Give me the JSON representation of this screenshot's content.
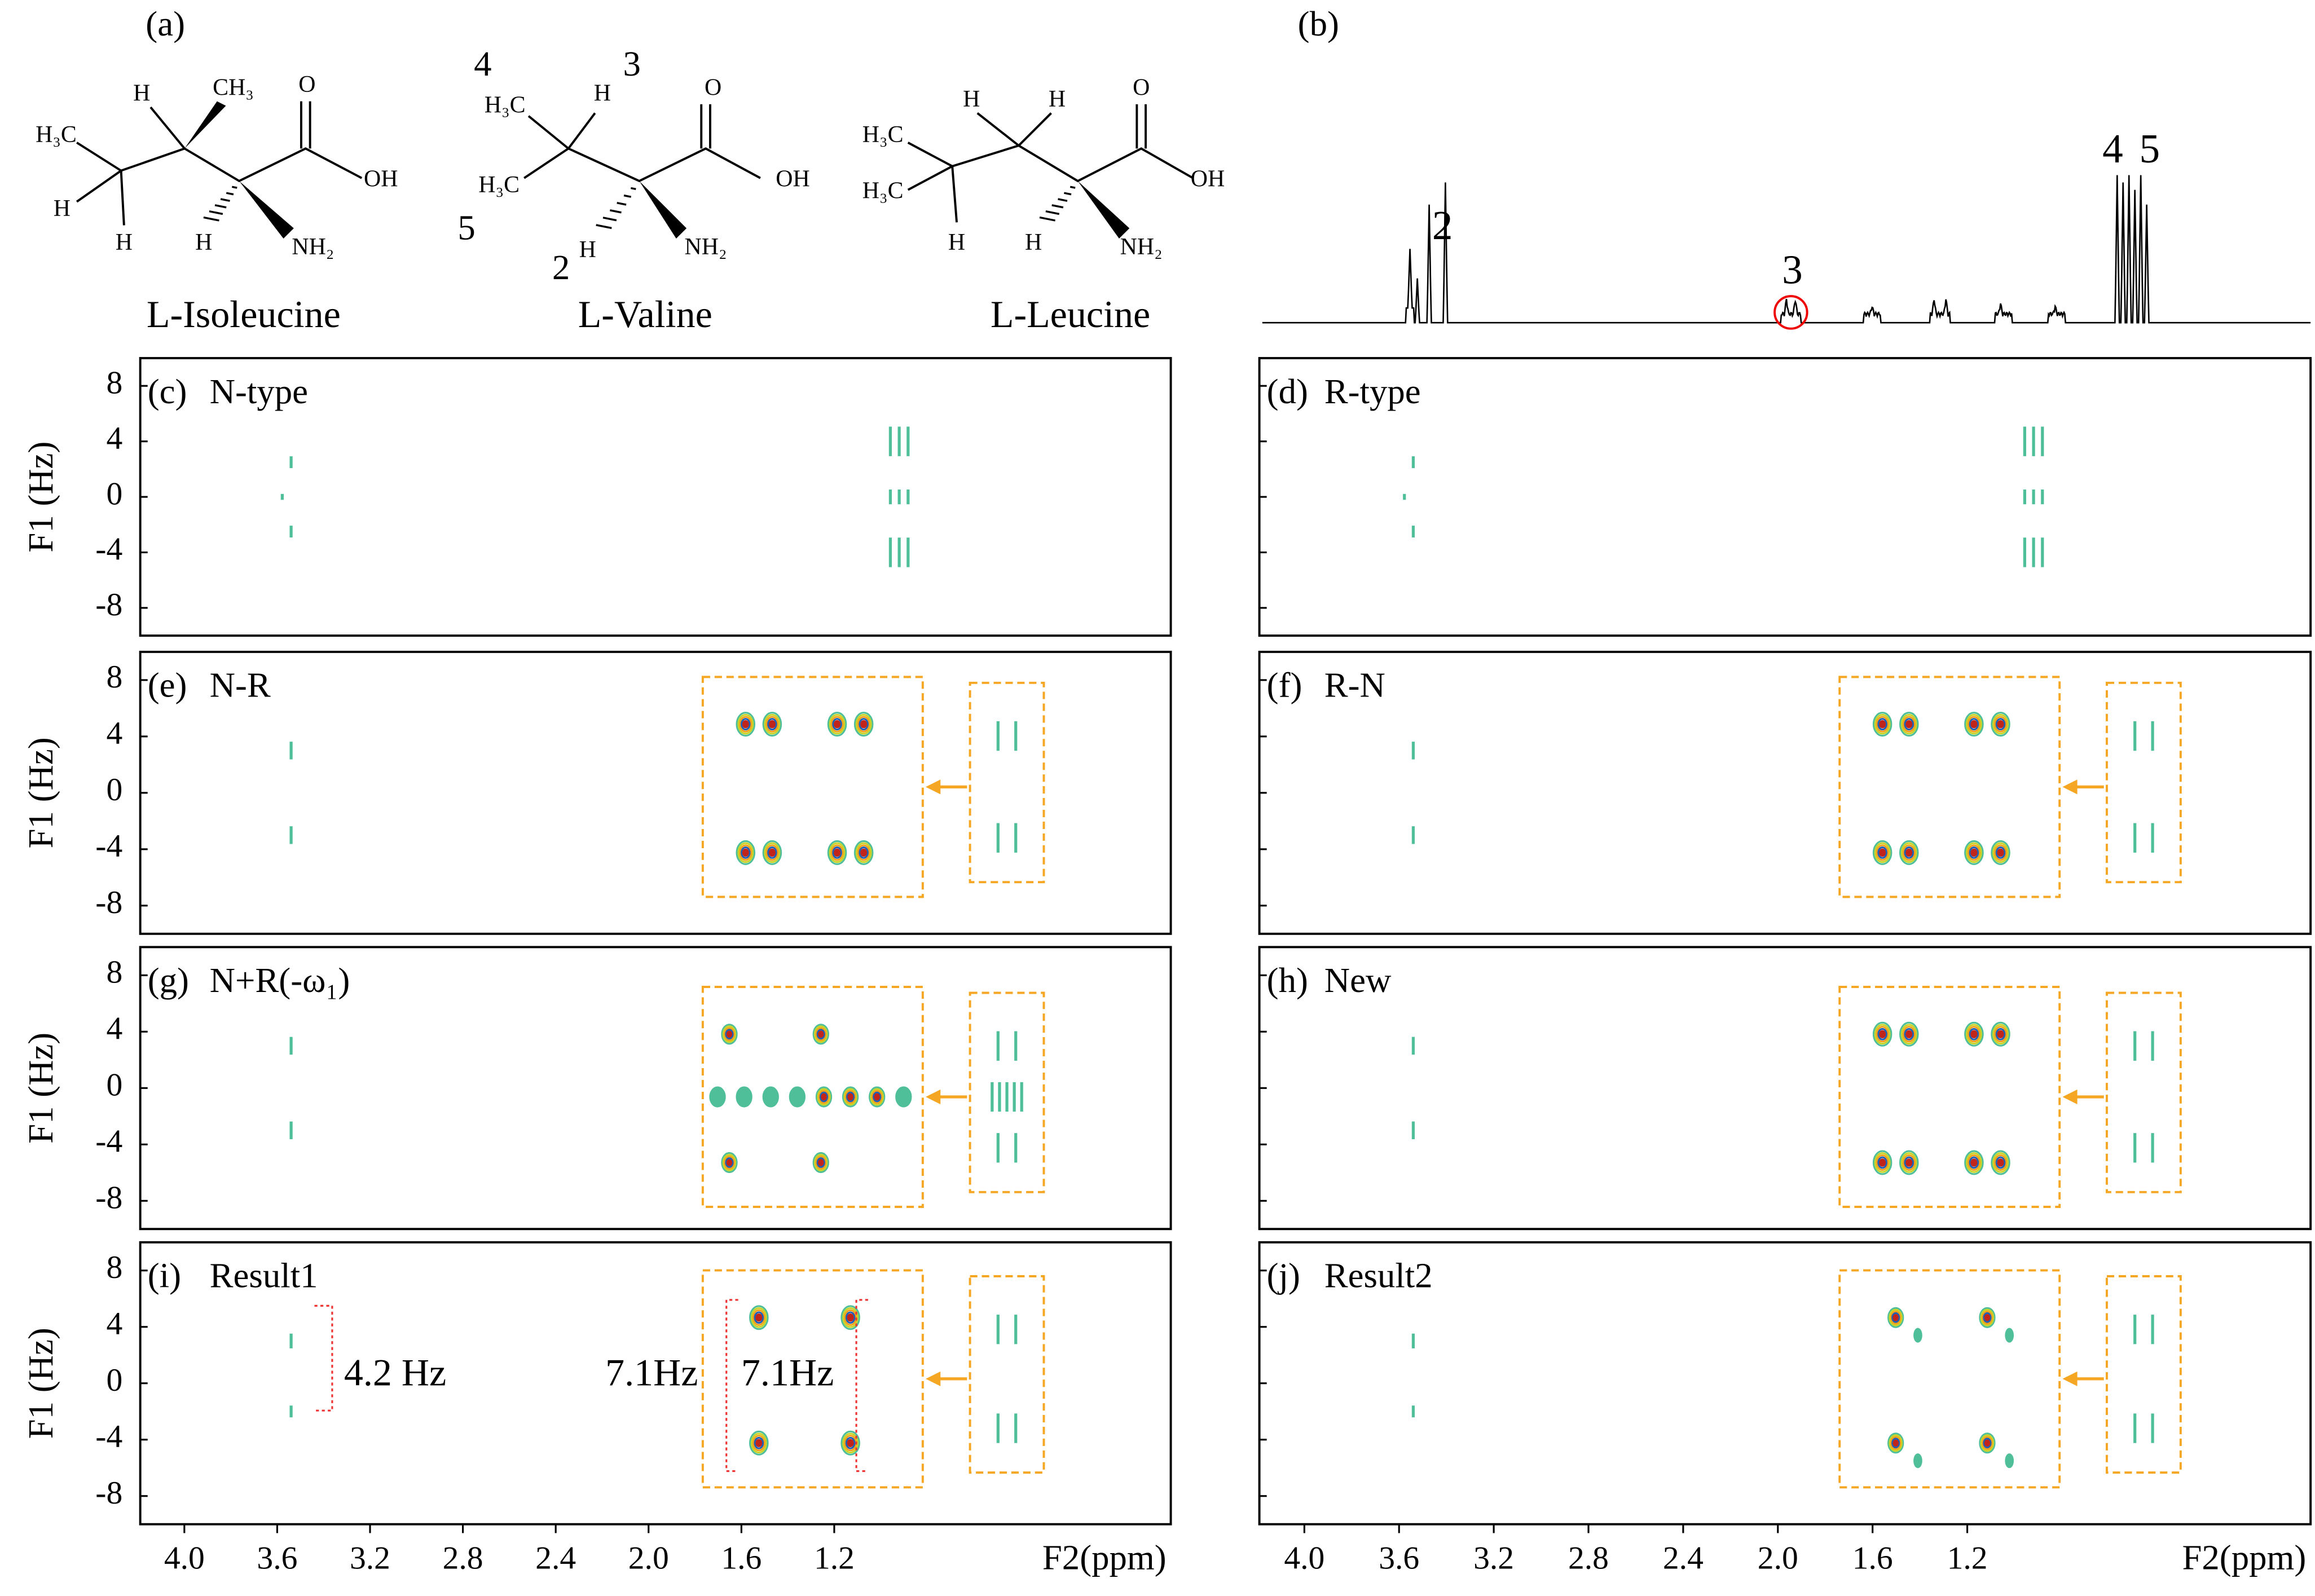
{
  "panel_a": {
    "label": "(a)",
    "molecules": [
      {
        "name": "L-Isoleucine",
        "atoms": [
          "H₃C",
          "H",
          "H",
          "H",
          "CH₃",
          "O",
          "OH",
          "H",
          "NH₂"
        ]
      },
      {
        "name": "L-Valine",
        "atoms": [
          "4",
          "H₃C",
          "3",
          "H",
          "H₃C",
          "5",
          "2",
          "H",
          "O",
          "OH",
          "NH₂"
        ]
      },
      {
        "name": "L-Leucine",
        "atoms": [
          "H₃C",
          "H₃C",
          "H",
          "H",
          "H",
          "O",
          "OH",
          "H",
          "NH₂"
        ]
      }
    ]
  },
  "panel_b": {
    "label": "(b)",
    "peaks": [
      "2",
      "3",
      "4",
      "5"
    ]
  },
  "axes": {
    "y_label": "F1 (Hz)",
    "x_label": "F2(ppm)",
    "ylim": [
      -10,
      10
    ],
    "yticks": [
      8,
      4,
      0,
      -4,
      -8
    ],
    "xlim": [
      4.19,
      -0.25
    ],
    "xticks": [
      {
        "value": 4,
        "label": "4.0"
      },
      {
        "value": 3.6,
        "label": "3.6"
      },
      {
        "value": 3.2,
        "label": "3.2"
      },
      {
        "value": 2.8,
        "label": "2.8"
      },
      {
        "value": 2.4,
        "label": "2.4"
      },
      {
        "value": 2,
        "label": "2.0"
      },
      {
        "value": 1.6,
        "label": "1.6"
      },
      {
        "value": 1.2,
        "label": "1.2"
      }
    ]
  },
  "panels": [
    {
      "label": "(c)",
      "name": "N-type"
    },
    {
      "label": "(d)",
      "name": "R-type"
    },
    {
      "label": "(e)",
      "name": "N-R"
    },
    {
      "label": "(f)",
      "name": "R-N"
    },
    {
      "label": "(g)",
      "name": "N+R(-ω₁)"
    },
    {
      "label": "(h)",
      "name": "New"
    },
    {
      "label": "(i)",
      "name": "Result1"
    },
    {
      "label": "(j)",
      "name": "Result2"
    }
  ],
  "annotations": {
    "couplings": [
      "4.2 Hz",
      "7.1Hz",
      "7.1Hz"
    ]
  }
}
